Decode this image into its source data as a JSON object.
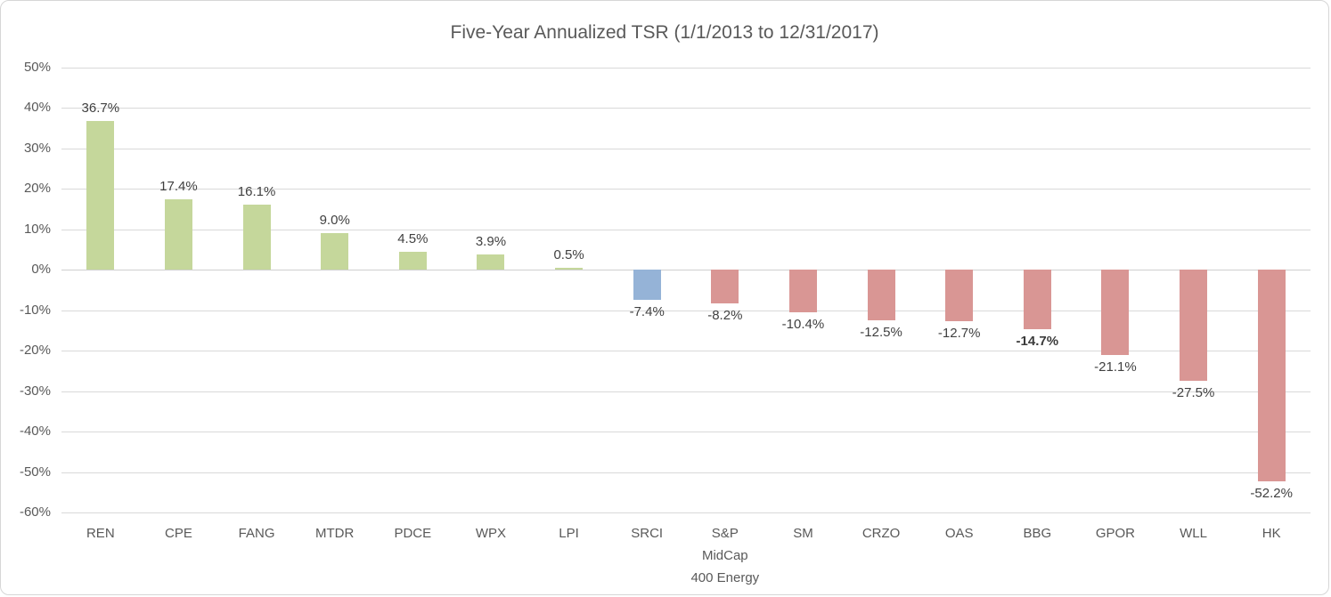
{
  "chart_data": {
    "type": "bar",
    "title": "Five-Year Annualized TSR (1/1/2013 to 12/31/2017)",
    "xlabel": "",
    "ylabel": "",
    "ylim": [
      -60,
      50
    ],
    "grid": true,
    "legend_position": "none",
    "label_position": "outside-end",
    "palette": {
      "positive": "#c5d79b",
      "highlight": "#95b3d7",
      "negative": "#d99694"
    },
    "axis_text_color": "#595959",
    "data_label_color": "#404040",
    "gridline_color": "#d9d9d9",
    "yticks": [
      {
        "value": 50,
        "label": "50%"
      },
      {
        "value": 40,
        "label": "40%"
      },
      {
        "value": 30,
        "label": "30%"
      },
      {
        "value": 20,
        "label": "20%"
      },
      {
        "value": 10,
        "label": "10%"
      },
      {
        "value": 0,
        "label": "0%"
      },
      {
        "value": -10,
        "label": "-10%"
      },
      {
        "value": -20,
        "label": "-20%"
      },
      {
        "value": -30,
        "label": "-30%"
      },
      {
        "value": -40,
        "label": "-40%"
      },
      {
        "value": -50,
        "label": "-50%"
      },
      {
        "value": -60,
        "label": "-60%"
      }
    ],
    "bars": [
      {
        "category": "REN",
        "category_lines": [
          "REN"
        ],
        "value": 36.7,
        "label": "36.7%",
        "color": "positive",
        "bold": false
      },
      {
        "category": "CPE",
        "category_lines": [
          "CPE"
        ],
        "value": 17.4,
        "label": "17.4%",
        "color": "positive",
        "bold": false
      },
      {
        "category": "FANG",
        "category_lines": [
          "FANG"
        ],
        "value": 16.1,
        "label": "16.1%",
        "color": "positive",
        "bold": false
      },
      {
        "category": "MTDR",
        "category_lines": [
          "MTDR"
        ],
        "value": 9.0,
        "label": "9.0%",
        "color": "positive",
        "bold": false
      },
      {
        "category": "PDCE",
        "category_lines": [
          "PDCE"
        ],
        "value": 4.5,
        "label": "4.5%",
        "color": "positive",
        "bold": false
      },
      {
        "category": "WPX",
        "category_lines": [
          "WPX"
        ],
        "value": 3.9,
        "label": "3.9%",
        "color": "positive",
        "bold": false
      },
      {
        "category": "LPI",
        "category_lines": [
          "LPI"
        ],
        "value": 0.5,
        "label": "0.5%",
        "color": "positive",
        "bold": false
      },
      {
        "category": "SRCI",
        "category_lines": [
          "SRCI"
        ],
        "value": -7.4,
        "label": "-7.4%",
        "color": "highlight",
        "bold": false
      },
      {
        "category": "S&P MidCap 400 Energy",
        "category_lines": [
          "S&P",
          "MidCap",
          "400 Energy"
        ],
        "value": -8.2,
        "label": "-8.2%",
        "color": "negative",
        "bold": false
      },
      {
        "category": "SM",
        "category_lines": [
          "SM"
        ],
        "value": -10.4,
        "label": "-10.4%",
        "color": "negative",
        "bold": false
      },
      {
        "category": "CRZO",
        "category_lines": [
          "CRZO"
        ],
        "value": -12.5,
        "label": "-12.5%",
        "color": "negative",
        "bold": false
      },
      {
        "category": "OAS",
        "category_lines": [
          "OAS"
        ],
        "value": -12.7,
        "label": "-12.7%",
        "color": "negative",
        "bold": false
      },
      {
        "category": "BBG",
        "category_lines": [
          "BBG"
        ],
        "value": -14.7,
        "label": "-14.7%",
        "color": "negative",
        "bold": true
      },
      {
        "category": "GPOR",
        "category_lines": [
          "GPOR"
        ],
        "value": -21.1,
        "label": "-21.1%",
        "color": "negative",
        "bold": false
      },
      {
        "category": "WLL",
        "category_lines": [
          "WLL"
        ],
        "value": -27.5,
        "label": "-27.5%",
        "color": "negative",
        "bold": false
      },
      {
        "category": "HK",
        "category_lines": [
          "HK"
        ],
        "value": -52.2,
        "label": "-52.2%",
        "color": "negative",
        "bold": false
      }
    ]
  }
}
